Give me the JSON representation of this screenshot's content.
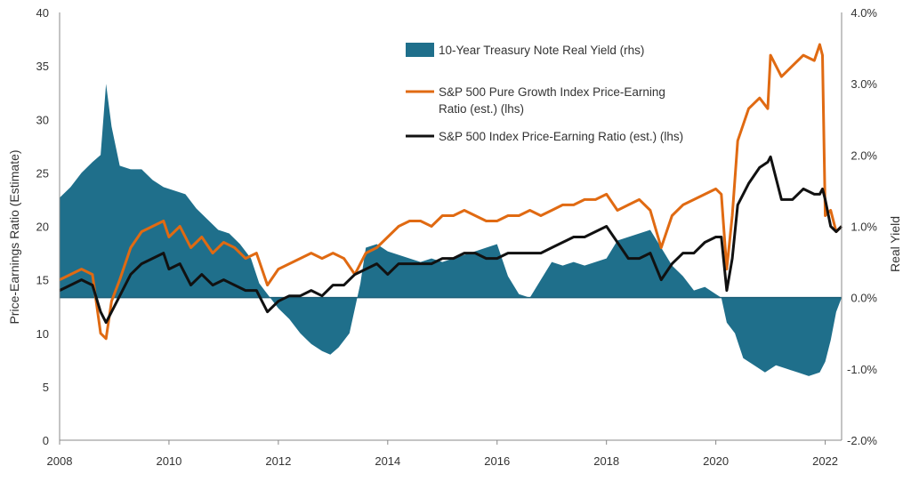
{
  "chart_data": {
    "type": "line",
    "title": "",
    "xlabel": "",
    "ylabel_left": "Price-Earnings Ratio (Estimate)",
    "ylabel_right": "Real Yield",
    "xlim": [
      2008,
      2022.3
    ],
    "ylim_left": [
      0,
      40
    ],
    "ylim_right": [
      -2.0,
      4.0
    ],
    "x_ticks": [
      "2008",
      "2010",
      "2012",
      "2014",
      "2016",
      "2018",
      "2020",
      "2022"
    ],
    "y_left_ticks": [
      "0",
      "5",
      "10",
      "15",
      "20",
      "25",
      "30",
      "35",
      "40"
    ],
    "y_right_ticks": [
      "4.0%",
      "3.0%",
      "2.0%",
      "1.0%",
      "0.0%",
      "-1.0%",
      "-2.0%"
    ],
    "grid": false,
    "legend_placement": "top-center",
    "series": [
      {
        "name": "10-Year Treasury Note Real Yield (rhs)",
        "type": "area",
        "axis": "right",
        "color": "#1f6f8b",
        "x": [
          2008.0,
          2008.2,
          2008.4,
          2008.6,
          2008.75,
          2008.85,
          2008.95,
          2009.1,
          2009.3,
          2009.5,
          2009.7,
          2009.9,
          2010.1,
          2010.3,
          2010.5,
          2010.7,
          2010.9,
          2011.1,
          2011.3,
          2011.5,
          2011.65,
          2011.8,
          2012.0,
          2012.2,
          2012.4,
          2012.6,
          2012.8,
          2012.95,
          2013.1,
          2013.3,
          2013.5,
          2013.6,
          2013.8,
          2014.0,
          2014.2,
          2014.4,
          2014.6,
          2014.8,
          2015.0,
          2015.2,
          2015.4,
          2015.6,
          2015.8,
          2016.0,
          2016.2,
          2016.4,
          2016.6,
          2016.8,
          2017.0,
          2017.2,
          2017.4,
          2017.6,
          2017.8,
          2018.0,
          2018.2,
          2018.4,
          2018.6,
          2018.8,
          2019.0,
          2019.2,
          2019.4,
          2019.6,
          2019.8,
          2020.0,
          2020.1,
          2020.2,
          2020.35,
          2020.5,
          2020.7,
          2020.9,
          2021.1,
          2021.3,
          2021.5,
          2021.7,
          2021.9,
          2022.0,
          2022.1,
          2022.2,
          2022.3
        ],
        "values": [
          1.4,
          1.55,
          1.75,
          1.9,
          2.0,
          3.0,
          2.4,
          1.85,
          1.8,
          1.8,
          1.65,
          1.55,
          1.5,
          1.45,
          1.25,
          1.1,
          0.95,
          0.9,
          0.75,
          0.55,
          0.2,
          0.05,
          -0.15,
          -0.3,
          -0.5,
          -0.65,
          -0.75,
          -0.8,
          -0.7,
          -0.5,
          0.2,
          0.7,
          0.75,
          0.65,
          0.6,
          0.55,
          0.5,
          0.55,
          0.5,
          0.55,
          0.6,
          0.65,
          0.7,
          0.75,
          0.3,
          0.05,
          0.0,
          0.25,
          0.5,
          0.45,
          0.5,
          0.45,
          0.5,
          0.55,
          0.8,
          0.85,
          0.9,
          0.95,
          0.7,
          0.45,
          0.3,
          0.1,
          0.15,
          0.05,
          0.0,
          -0.35,
          -0.5,
          -0.85,
          -0.95,
          -1.05,
          -0.95,
          -1.0,
          -1.05,
          -1.1,
          -1.05,
          -0.9,
          -0.6,
          -0.2,
          0.0
        ]
      },
      {
        "name": "S&P 500 Pure Growth Index Price-Earning Ratio (est.) (lhs)",
        "type": "line",
        "axis": "left",
        "color": "#e06a12",
        "x": [
          2008.0,
          2008.2,
          2008.4,
          2008.6,
          2008.75,
          2008.85,
          2008.95,
          2009.1,
          2009.3,
          2009.5,
          2009.7,
          2009.9,
          2010.0,
          2010.2,
          2010.4,
          2010.6,
          2010.8,
          2011.0,
          2011.2,
          2011.4,
          2011.6,
          2011.8,
          2012.0,
          2012.2,
          2012.4,
          2012.6,
          2012.8,
          2013.0,
          2013.2,
          2013.4,
          2013.6,
          2013.8,
          2014.0,
          2014.2,
          2014.4,
          2014.6,
          2014.8,
          2015.0,
          2015.2,
          2015.4,
          2015.6,
          2015.8,
          2016.0,
          2016.2,
          2016.4,
          2016.6,
          2016.8,
          2017.0,
          2017.2,
          2017.4,
          2017.6,
          2017.8,
          2018.0,
          2018.2,
          2018.4,
          2018.6,
          2018.8,
          2019.0,
          2019.2,
          2019.4,
          2019.6,
          2019.8,
          2020.0,
          2020.1,
          2020.2,
          2020.3,
          2020.4,
          2020.6,
          2020.8,
          2020.95,
          2021.0,
          2021.2,
          2021.4,
          2021.6,
          2021.8,
          2021.9,
          2021.95,
          2022.0,
          2022.1,
          2022.2,
          2022.3
        ],
        "values": [
          15,
          15.5,
          16,
          15.5,
          10,
          9.5,
          13,
          15,
          18,
          19.5,
          20,
          20.5,
          19,
          20,
          18,
          19,
          17.5,
          18.5,
          18,
          17,
          17.5,
          14.5,
          16,
          16.5,
          17,
          17.5,
          17,
          17.5,
          17,
          15.5,
          17.5,
          18,
          19,
          20,
          20.5,
          20.5,
          20,
          21,
          21,
          21.5,
          21,
          20.5,
          20.5,
          21,
          21,
          21.5,
          21,
          21.5,
          22,
          22,
          22.5,
          22.5,
          23,
          21.5,
          22,
          22.5,
          21.5,
          18,
          21,
          22,
          22.5,
          23,
          23.5,
          23,
          16,
          21,
          28,
          31,
          32,
          31,
          36,
          34,
          35,
          36,
          35.5,
          37,
          36,
          21,
          21.5,
          19.5,
          20
        ]
      },
      {
        "name": "S&P 500 Index Price-Earning Ratio (est.) (lhs)",
        "type": "line",
        "axis": "left",
        "color": "#111111",
        "x": [
          2008.0,
          2008.2,
          2008.4,
          2008.6,
          2008.75,
          2008.85,
          2008.95,
          2009.1,
          2009.3,
          2009.5,
          2009.7,
          2009.9,
          2010.0,
          2010.2,
          2010.4,
          2010.6,
          2010.8,
          2011.0,
          2011.2,
          2011.4,
          2011.6,
          2011.8,
          2012.0,
          2012.2,
          2012.4,
          2012.6,
          2012.8,
          2013.0,
          2013.2,
          2013.4,
          2013.6,
          2013.8,
          2014.0,
          2014.2,
          2014.4,
          2014.6,
          2014.8,
          2015.0,
          2015.2,
          2015.4,
          2015.6,
          2015.8,
          2016.0,
          2016.2,
          2016.4,
          2016.6,
          2016.8,
          2017.0,
          2017.2,
          2017.4,
          2017.6,
          2017.8,
          2018.0,
          2018.2,
          2018.4,
          2018.6,
          2018.8,
          2019.0,
          2019.2,
          2019.4,
          2019.6,
          2019.8,
          2020.0,
          2020.1,
          2020.2,
          2020.3,
          2020.4,
          2020.6,
          2020.8,
          2020.95,
          2021.0,
          2021.2,
          2021.4,
          2021.6,
          2021.8,
          2021.9,
          2021.95,
          2022.0,
          2022.1,
          2022.2,
          2022.3
        ],
        "values": [
          14,
          14.5,
          15,
          14.5,
          12,
          11,
          12,
          13.5,
          15.5,
          16.5,
          17,
          17.5,
          16,
          16.5,
          14.5,
          15.5,
          14.5,
          15,
          14.5,
          14,
          14,
          12,
          13,
          13.5,
          13.5,
          14,
          13.5,
          14.5,
          14.5,
          15.5,
          16,
          16.5,
          15.5,
          16.5,
          16.5,
          16.5,
          16.5,
          17,
          17,
          17.5,
          17.5,
          17,
          17,
          17.5,
          17.5,
          17.5,
          17.5,
          18,
          18.5,
          19,
          19,
          19.5,
          20,
          18.5,
          17,
          17,
          17.5,
          15,
          16.5,
          17.5,
          17.5,
          18.5,
          19,
          19,
          14,
          17,
          22,
          24,
          25.5,
          26,
          26.5,
          22.5,
          22.5,
          23.5,
          23,
          23,
          23.5,
          22.5,
          20,
          19.5,
          20
        ]
      }
    ]
  }
}
